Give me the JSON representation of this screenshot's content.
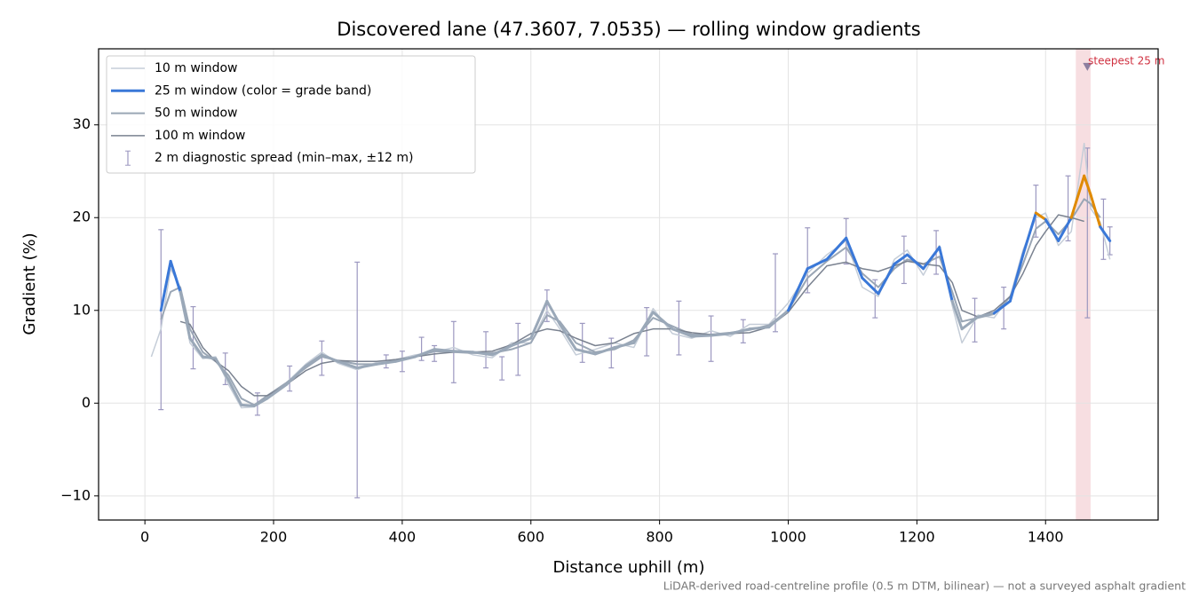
{
  "chart_data": {
    "type": "line",
    "title": "Discovered lane (47.3607, 7.0535) — rolling window gradients",
    "x_label": "Distance uphill (m)",
    "y_label": "Gradient (%)",
    "footnote": "LiDAR-derived road-centreline profile (0.5 m DTM, bilinear) — not a surveyed asphalt gradient",
    "xlim": [
      -72,
      1575
    ],
    "ylim": [
      -12.6,
      38.2
    ],
    "xticks": [
      0,
      200,
      400,
      600,
      800,
      1000,
      1200,
      1400
    ],
    "yticks": [
      {
        "value": -10,
        "label": "−10"
      },
      0,
      10,
      20,
      30
    ],
    "grid": true,
    "legend": "upper left",
    "x": [
      10,
      25,
      40,
      55,
      70,
      90,
      110,
      130,
      150,
      170,
      190,
      220,
      250,
      275,
      300,
      330,
      360,
      390,
      420,
      450,
      480,
      510,
      540,
      570,
      600,
      625,
      645,
      670,
      700,
      730,
      760,
      790,
      820,
      850,
      880,
      910,
      940,
      970,
      1000,
      1030,
      1060,
      1090,
      1115,
      1140,
      1165,
      1185,
      1210,
      1235,
      1255,
      1270,
      1295,
      1320,
      1345,
      1365,
      1385,
      1400,
      1420,
      1440,
      1460,
      1470,
      1485,
      1500
    ],
    "series": [
      {
        "name": "10 m window",
        "color": "#c5cdd8",
        "width": 1.5,
        "values": [
          5,
          8,
          14.5,
          12.5,
          6.5,
          4.8,
          5,
          2,
          -0.5,
          -0.4,
          0.8,
          2.2,
          4.2,
          5.5,
          4.3,
          3.6,
          4.4,
          4.7,
          5.2,
          5.5,
          6,
          5.2,
          4.9,
          6.5,
          6.5,
          10,
          8,
          5.2,
          5.8,
          6.5,
          6,
          10.2,
          7.5,
          7,
          7.8,
          7.2,
          8.5,
          8.5,
          10.8,
          14,
          16,
          17.5,
          12.5,
          11.5,
          15.5,
          16.5,
          13.8,
          17,
          10.5,
          6.5,
          9.5,
          9.2,
          11.5,
          16.5,
          20,
          20.5,
          17,
          18.5,
          28,
          21,
          19.5,
          15.5
        ]
      },
      {
        "name": "25 m window (color = grade band)",
        "color": "#3a78d8",
        "width": 3,
        "band_limits": [
          10,
          20
        ],
        "band_colors": [
          "#9aa8b8",
          "#3a78d8",
          "#e08a00"
        ],
        "values": [
          null,
          10,
          15.3,
          12,
          7,
          5,
          4.8,
          2.5,
          -0.2,
          -0.3,
          0.5,
          2,
          4,
          5.2,
          4.5,
          3.8,
          4.2,
          4.5,
          5,
          5.8,
          5.6,
          5.5,
          5.2,
          6.2,
          7,
          11,
          8.5,
          5.8,
          5.3,
          6,
          6.5,
          9.8,
          8,
          7.2,
          7.3,
          7.5,
          8,
          8.2,
          10,
          14.5,
          15.5,
          17.8,
          13.5,
          11.8,
          15,
          16,
          14.5,
          16.8,
          11,
          8,
          9.3,
          9.7,
          11,
          16,
          20.5,
          19.8,
          17.5,
          20,
          24.5,
          22.5,
          19,
          17.5
        ]
      },
      {
        "name": "50 m window",
        "color": "#9aa6b5",
        "width": 2,
        "values": [
          null,
          9,
          12,
          12.5,
          8,
          5.5,
          4.5,
          3,
          0.5,
          -0.2,
          0.8,
          2.2,
          3.8,
          5,
          4.6,
          4.2,
          4.2,
          4.6,
          5,
          5.6,
          5.5,
          5.4,
          5.4,
          5.8,
          6.5,
          9.5,
          8.8,
          6.5,
          5.5,
          5.8,
          6.8,
          9.2,
          8.3,
          7.4,
          7.4,
          7.6,
          7.9,
          8.4,
          10,
          13.5,
          15.3,
          16.8,
          14,
          12.5,
          14.5,
          15.5,
          15,
          15.8,
          12,
          8.8,
          9.2,
          9.6,
          11.5,
          15,
          18.8,
          19.6,
          18.2,
          19.8,
          22,
          21.5,
          20,
          null
        ]
      },
      {
        "name": "100 m window",
        "color": "#7a8290",
        "width": 1.5,
        "values": [
          null,
          null,
          null,
          8.8,
          8.5,
          6,
          4.5,
          3.5,
          1.8,
          0.8,
          0.8,
          2,
          3.5,
          4.3,
          4.6,
          4.5,
          4.5,
          4.7,
          5,
          5.3,
          5.5,
          5.5,
          5.6,
          6.3,
          7.5,
          8,
          7.8,
          7,
          6.2,
          6.5,
          7.5,
          8,
          8,
          7.6,
          7.4,
          7.5,
          7.6,
          8.2,
          9.8,
          12.5,
          14.8,
          15.2,
          14.5,
          14.2,
          14.8,
          15.3,
          15,
          14.8,
          13,
          10,
          9.3,
          10,
          11.5,
          14,
          17,
          18.5,
          20.3,
          20,
          19.6,
          null,
          null,
          null
        ]
      }
    ],
    "spread": {
      "name": "2 m diagnostic spread (min–max, ±12 m)",
      "color": "#9c98c0",
      "x": [
        25,
        75,
        125,
        175,
        225,
        275,
        330,
        375,
        400,
        430,
        450,
        480,
        530,
        555,
        580,
        625,
        680,
        725,
        780,
        830,
        880,
        930,
        980,
        1030,
        1090,
        1135,
        1180,
        1230,
        1290,
        1335,
        1385,
        1435,
        1465,
        1490,
        1500
      ],
      "low": [
        -0.7,
        3.7,
        2,
        -1.3,
        1.3,
        3,
        -10.2,
        3.8,
        3.4,
        4.6,
        4.5,
        2.2,
        3.8,
        2.5,
        3,
        8.8,
        4.4,
        3.8,
        5.1,
        5.2,
        4.5,
        6.5,
        7.7,
        11.9,
        15,
        9.2,
        12.9,
        13.9,
        6.6,
        8,
        17.9,
        17.5,
        9.2,
        15.5,
        16
      ],
      "high": [
        18.7,
        10.4,
        5.4,
        1.1,
        4,
        6.7,
        15.2,
        5.2,
        5.6,
        7.1,
        6.2,
        8.8,
        7.7,
        5,
        8.6,
        12.2,
        8.6,
        7,
        10.3,
        11,
        9.4,
        9,
        16.1,
        18.9,
        19.9,
        13.3,
        18,
        18.6,
        11.3,
        12.5,
        23.5,
        24.5,
        27.5,
        22,
        19
      ]
    },
    "highlight": {
      "span": [
        1447,
        1470
      ],
      "color": "#e8a0a8",
      "marker": [
        1465,
        36.2
      ],
      "label": "steepest 25 m",
      "label_color": "#d03040"
    }
  }
}
